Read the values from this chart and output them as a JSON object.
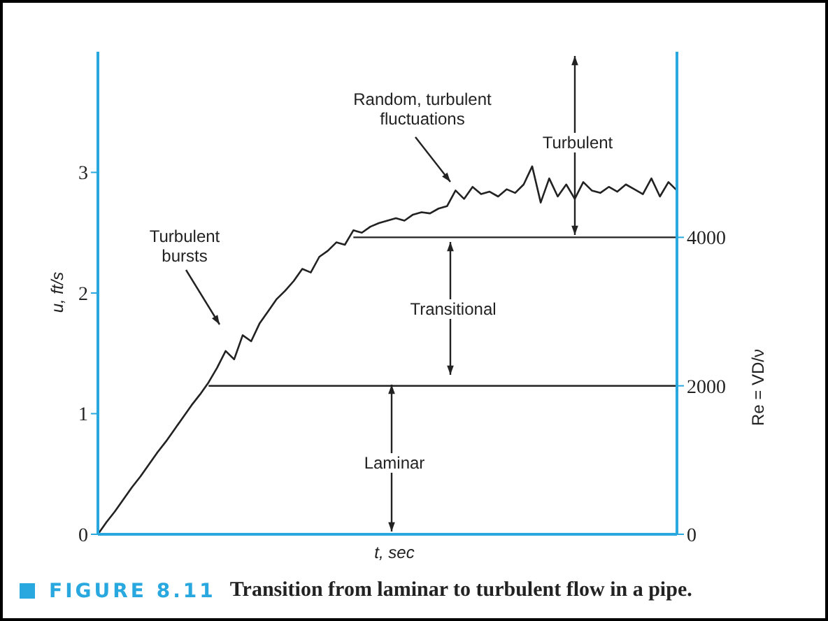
{
  "chart_data": {
    "type": "line",
    "xlabel": "t, sec",
    "ylabel": "u, ft/s",
    "y2label": "Re = VD/ν",
    "categories": [
      null,
      null,
      null,
      null,
      null,
      null,
      null,
      null,
      null,
      null,
      null,
      null,
      null,
      null,
      null,
      null,
      null,
      null,
      null,
      null,
      null,
      null,
      null,
      null,
      null,
      null,
      null,
      null,
      null,
      null,
      null,
      null,
      null,
      null,
      null,
      null,
      null,
      null,
      null,
      null,
      null,
      null,
      null,
      null,
      null,
      null,
      null,
      null,
      null,
      null,
      null,
      null,
      null,
      null,
      null,
      null,
      null,
      null,
      null,
      null,
      null,
      null,
      null,
      null,
      null,
      null,
      null,
      null,
      null
    ],
    "series": [
      {
        "color": "#222222",
        "values": [
          0,
          0.1,
          0.19,
          0.29,
          0.39,
          0.48,
          0.58,
          0.68,
          0.77,
          0.87,
          0.97,
          1.07,
          1.16,
          1.26,
          1.38,
          1.52,
          1.45,
          1.65,
          1.6,
          1.75,
          1.85,
          1.95,
          2.02,
          2.1,
          2.2,
          2.17,
          2.3,
          2.35,
          2.42,
          2.4,
          2.52,
          2.5,
          2.55,
          2.58,
          2.6,
          2.62,
          2.6,
          2.65,
          2.67,
          2.66,
          2.7,
          2.72,
          2.85,
          2.78,
          2.88,
          2.82,
          2.84,
          2.8,
          2.86,
          2.83,
          2.9,
          3.05,
          2.75,
          2.95,
          2.8,
          2.9,
          2.78,
          2.92,
          2.85,
          2.83,
          2.88,
          2.84,
          2.9,
          2.86,
          2.82,
          2.95,
          2.8,
          2.92,
          2.85
        ]
      }
    ],
    "ylim": [
      0,
      4
    ],
    "yticks": [
      0,
      1,
      2,
      3
    ],
    "y2lim": [
      0,
      6500
    ],
    "y2ticks": [
      0,
      2000,
      4000
    ],
    "ref_lines": [
      {
        "axis": "y2",
        "value": 2000,
        "color": "#222222"
      },
      {
        "axis": "y2",
        "value": 4000,
        "color": "#222222"
      }
    ],
    "annotations": [
      "Random, turbulent fluctuations",
      "Turbulent bursts",
      "Turbulent",
      "Transitional",
      "Laminar",
      "FIGURE 8.11",
      "Transition from laminar to turbulent flow in a pipe."
    ],
    "grid": false,
    "marker": "none",
    "line_style": "solid"
  }
}
